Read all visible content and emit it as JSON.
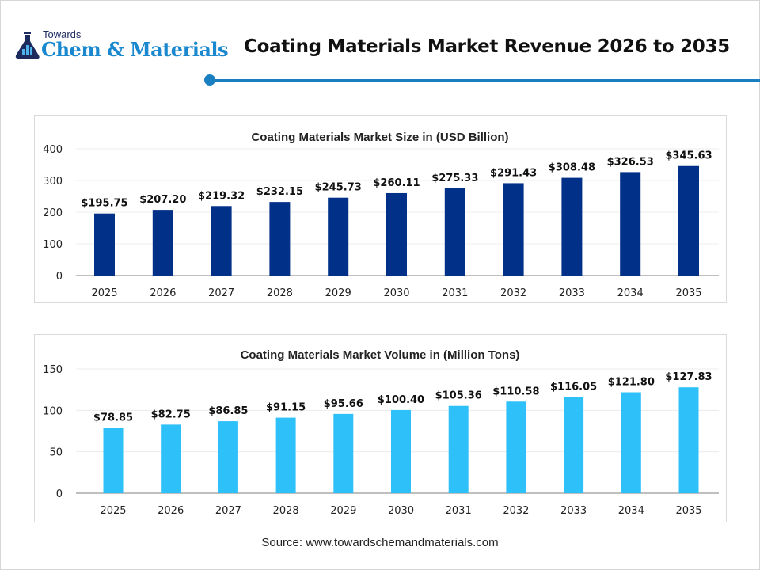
{
  "header": {
    "logo_top": "Towards",
    "logo_main": "Chem & Materials",
    "title": "Coating Materials Market Revenue 2026 to 2035",
    "accent_color": "#1a7fc1"
  },
  "chart_data": [
    {
      "type": "bar",
      "title": "Coating Materials Market Size in (USD Billion)",
      "categories": [
        "2025",
        "2026",
        "2027",
        "2028",
        "2029",
        "2030",
        "2031",
        "2032",
        "2033",
        "2034",
        "2035"
      ],
      "values": [
        195.75,
        207.2,
        219.32,
        232.15,
        245.73,
        260.11,
        275.33,
        291.43,
        308.48,
        326.53,
        345.63
      ],
      "labels": [
        "$195.75",
        "$207.20",
        "$219.32",
        "$232.15",
        "$245.73",
        "$260.11",
        "$275.33",
        "$291.43",
        "$308.48",
        "$326.53",
        "$345.63"
      ],
      "yticks": [
        "0",
        "100",
        "200",
        "300",
        "400"
      ],
      "ylim": [
        0,
        400
      ],
      "grid": true,
      "color": "#003087"
    },
    {
      "type": "bar",
      "title": "Coating Materials Market Volume in (Million Tons)",
      "categories": [
        "2025",
        "2026",
        "2027",
        "2028",
        "2029",
        "2030",
        "2031",
        "2032",
        "2033",
        "2034",
        "2035"
      ],
      "values": [
        78.85,
        82.75,
        86.85,
        91.15,
        95.66,
        100.4,
        105.36,
        110.58,
        116.05,
        121.8,
        127.83
      ],
      "labels": [
        "$78.85",
        "$82.75",
        "$86.85",
        "$91.15",
        "$95.66",
        "$100.40",
        "$105.36",
        "$110.58",
        "$116.05",
        "$121.80",
        "$127.83"
      ],
      "yticks": [
        "0",
        "50",
        "100",
        "150"
      ],
      "ylim": [
        0,
        150
      ],
      "grid": true,
      "color": "#2ec0f9"
    }
  ],
  "footer": {
    "source": "Source: www.towardschemandmaterials.com"
  }
}
